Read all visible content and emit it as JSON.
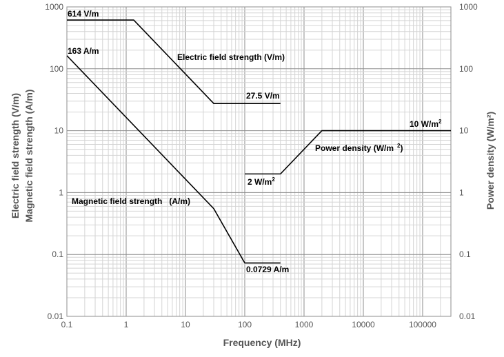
{
  "chart_data": {
    "type": "line",
    "xscale": "log",
    "yscale": "log",
    "xlim": [
      0.1,
      300000
    ],
    "ylim": [
      0.01,
      1000
    ],
    "grid": true,
    "xlabel": "Frequency (MHz)",
    "ylabel_line1": "Electric field strength (V/m)",
    "ylabel_line2": "Magnetic field strength (A/m)",
    "y2label": "Power density (W/m²)",
    "x_ticks": [
      {
        "value": 0.1,
        "label": "0.1"
      },
      {
        "value": 1,
        "label": "1"
      },
      {
        "value": 10,
        "label": "10"
      },
      {
        "value": 100,
        "label": "100"
      },
      {
        "value": 1000,
        "label": "1000"
      },
      {
        "value": 10000,
        "label": "10000"
      },
      {
        "value": 100000,
        "label": "100000"
      }
    ],
    "y_ticks": [
      {
        "value": 1000,
        "label": "1000"
      },
      {
        "value": 100,
        "label": "100"
      },
      {
        "value": 10,
        "label": "10"
      },
      {
        "value": 1,
        "label": "1"
      },
      {
        "value": 0.1,
        "label": "0.1"
      },
      {
        "value": 0.01,
        "label": "0.01"
      }
    ],
    "series": [
      {
        "name": "Electric field strength (V/m)",
        "color": "#000000",
        "points": [
          [
            0.1,
            614
          ],
          [
            1.34,
            614
          ],
          [
            30,
            27.5
          ],
          [
            400,
            27.5
          ]
        ]
      },
      {
        "name": "Magnetic field strength (A/m)",
        "color": "#000000",
        "points": [
          [
            0.1,
            163
          ],
          [
            30,
            0.55
          ],
          [
            100,
            0.0729
          ],
          [
            400,
            0.0729
          ]
        ]
      },
      {
        "name": "Power density (W/m²)",
        "color": "#000000",
        "points": [
          [
            100,
            2
          ],
          [
            400,
            2
          ],
          [
            2000,
            10
          ],
          [
            300000,
            10
          ]
        ]
      }
    ],
    "annotations": {
      "e_614": "614 V/m",
      "h_163": "163 A/m",
      "e_series": "Electric field strength (V/m)",
      "e_27_5": "27.5 V/m",
      "pd_10": "10 W/m",
      "pd_10_sup": "2",
      "pd_series": "Power density (W/m",
      "pd_series_sup": "2",
      "pd_series_end": ")",
      "pd_2": "2 W/m",
      "pd_2_sup": "2",
      "h_series": "Magnetic field strength   (A/m)",
      "h_0729": "0.0729 A/m"
    }
  }
}
